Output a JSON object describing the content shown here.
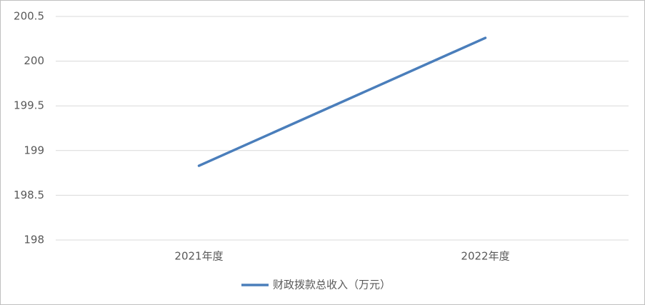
{
  "chart_data": {
    "type": "line",
    "categories": [
      "2021年度",
      "2022年度"
    ],
    "series": [
      {
        "name": "财政拨款总收入（万元）",
        "color": "#4a7ebb",
        "values": [
          198.83,
          200.26
        ]
      }
    ],
    "ylim": [
      198,
      200.5
    ],
    "yticks": [
      198,
      198.5,
      199,
      199.5,
      200,
      200.5
    ],
    "grid": true,
    "legend": "bottom"
  }
}
